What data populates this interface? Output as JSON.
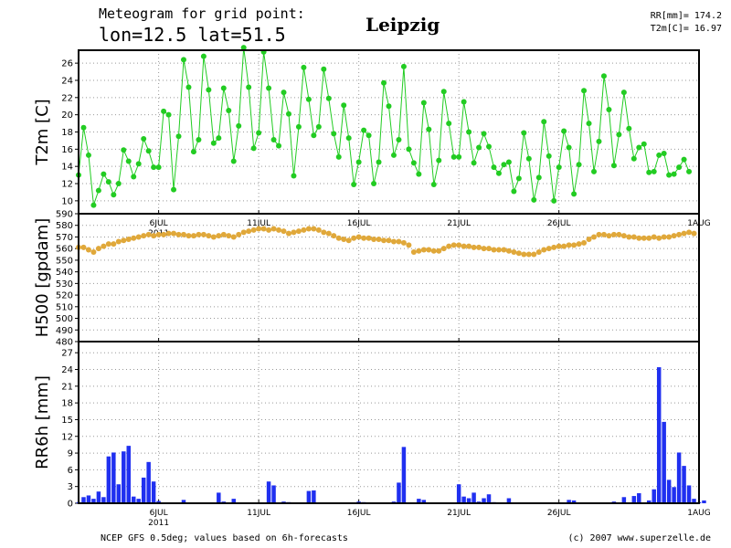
{
  "header": {
    "title_line1": "Meteogram for grid point:",
    "title_line2": "lon=12.5 lat=51.5",
    "location": "Leipzig",
    "rr_total": "RR[mm]= 174.2",
    "t2m_mean": "T2m[C]= 16.97"
  },
  "footer": {
    "source": "NCEP GFS 0.5deg; values based on 6h-forecasts",
    "credit": "(c) 2007 www.superzelle.de"
  },
  "colors": {
    "t2m": "#22cc22",
    "h500": "#e0a83a",
    "rr6h": "#2030f0",
    "grid": "#999999"
  },
  "chart_data": [
    {
      "type": "line",
      "ylabel": "T2m [C]",
      "ylim": [
        8.5,
        27.5
      ],
      "yticks": [
        10,
        12,
        14,
        16,
        18,
        20,
        22,
        24,
        26
      ],
      "xlim": [
        0,
        124
      ],
      "xticks": [
        {
          "label": "6JUL",
          "x": 16
        },
        {
          "label": "11JUL",
          "x": 36
        },
        {
          "label": "16JUL",
          "x": 56
        },
        {
          "label": "21JUL",
          "x": 76
        },
        {
          "label": "26JUL",
          "x": 96
        },
        {
          "label": "1AUG",
          "x": 124
        }
      ],
      "year_label": "2011",
      "x_unit": "6-hour steps from 2 JUL 2011",
      "values": [
        13,
        18.5,
        15.3,
        9.5,
        11.2,
        13.1,
        12.2,
        10.7,
        12,
        15.9,
        14.6,
        12.8,
        14.3,
        17.2,
        15.8,
        13.9,
        13.9,
        20.4,
        20,
        11.3,
        17.5,
        26.4,
        23.2,
        15.7,
        17.1,
        26.8,
        22.9,
        16.7,
        17.3,
        23.1,
        20.5,
        14.6,
        18.7,
        27.8,
        23.2,
        16.1,
        17.9,
        27.3,
        23.1,
        17.1,
        16.4,
        22.6,
        20.1,
        12.9,
        18.6,
        25.5,
        21.8,
        17.6,
        18.6,
        25.3,
        21.9,
        17.8,
        15.1,
        21.1,
        17.3,
        11.9,
        14.5,
        18.2,
        17.6,
        12,
        14.5,
        23.7,
        21,
        15.3,
        17.1,
        25.6,
        16,
        14.4,
        13.1,
        21.4,
        18.3,
        11.9,
        14.7,
        22.7,
        19,
        15.1,
        15.1,
        21.5,
        18,
        14.4,
        16.2,
        17.8,
        16.3,
        13.9,
        13.2,
        14.2,
        14.5,
        11.1,
        12.6,
        17.9,
        14.9,
        10.1,
        12.7,
        19.2,
        15.2,
        10,
        13.9,
        18.1,
        16.2,
        10.8,
        14.2,
        22.8,
        19,
        13.4,
        16.9,
        24.5,
        20.6,
        14.1,
        17.7,
        22.6,
        18.4,
        14.9,
        16.2,
        16.6,
        13.3,
        13.4,
        15.3,
        15.5,
        13,
        13.1,
        13.9,
        14.8,
        13.4
      ]
    },
    {
      "type": "line",
      "ylabel": "H500 [gpdam]",
      "ylim": [
        480,
        590
      ],
      "yticks": [
        480,
        490,
        500,
        510,
        520,
        530,
        540,
        550,
        560,
        570,
        580,
        590
      ],
      "xlim": [
        0,
        124
      ],
      "values": [
        561,
        561,
        559,
        557,
        560,
        562,
        564,
        564,
        566,
        567,
        568,
        569,
        570,
        571,
        572,
        571,
        572,
        572,
        573,
        573,
        572,
        572,
        571,
        571,
        572,
        572,
        571,
        570,
        571,
        572,
        571,
        570,
        572,
        574,
        575,
        576,
        577,
        577,
        576,
        577,
        576,
        575,
        573,
        574,
        575,
        576,
        577,
        577,
        576,
        574,
        573,
        571,
        569,
        568,
        567,
        569,
        570,
        569,
        569,
        568,
        568,
        567,
        567,
        566,
        566,
        565,
        563,
        557,
        558,
        559,
        559,
        558,
        558,
        560,
        562,
        563,
        563,
        562,
        562,
        561,
        561,
        560,
        560,
        559,
        559,
        559,
        558,
        557,
        556,
        555,
        555,
        555,
        557,
        559,
        560,
        561,
        562,
        562,
        563,
        563,
        564,
        565,
        568,
        570,
        572,
        572,
        571,
        572,
        572,
        571,
        570,
        570,
        569,
        569,
        569,
        570,
        569,
        570,
        570,
        571,
        572,
        573,
        574,
        573
      ]
    },
    {
      "type": "bar",
      "ylabel": "RR6h [mm]",
      "ylim": [
        0,
        29
      ],
      "yticks": [
        0,
        3,
        6,
        9,
        12,
        15,
        18,
        21,
        24,
        27
      ],
      "xlim": [
        0,
        124
      ],
      "xticks": [
        {
          "label": "6JUL",
          "x": 16
        },
        {
          "label": "11JUL",
          "x": 36
        },
        {
          "label": "16JUL",
          "x": 56
        },
        {
          "label": "21JUL",
          "x": 76
        },
        {
          "label": "26JUL",
          "x": 96
        },
        {
          "label": "1AUG",
          "x": 124
        }
      ],
      "year_label": "2011",
      "values": [
        0.2,
        1.1,
        1.4,
        0.8,
        2.1,
        1.1,
        8.4,
        9.1,
        3.4,
        9.3,
        10.3,
        1.2,
        0.8,
        4.6,
        7.4,
        3.9,
        0.4,
        0,
        0,
        0,
        0,
        0.6,
        0,
        0,
        0,
        0,
        0,
        0,
        1.9,
        0.3,
        0,
        0.8,
        0,
        0,
        0,
        0,
        0,
        0,
        3.9,
        3.2,
        0,
        0.3,
        0.2,
        0,
        0,
        0,
        2.2,
        2.3,
        0,
        0,
        0,
        0,
        0,
        0,
        0,
        0,
        0.3,
        0.2,
        0,
        0,
        0,
        0,
        0,
        0.3,
        3.7,
        10.1,
        0,
        0,
        0.8,
        0.6,
        0,
        0,
        0,
        0,
        0,
        0,
        3.4,
        1.2,
        0.9,
        1.9,
        0.3,
        0.9,
        1.6,
        0.2,
        0,
        0,
        0.9,
        0.1,
        0,
        0,
        0,
        0,
        0,
        0,
        0,
        0,
        0,
        0,
        0.6,
        0.5,
        0,
        0,
        0,
        0,
        0,
        0,
        0,
        0.3,
        0,
        1.1,
        0,
        1.3,
        1.8,
        0,
        0.5,
        2.5,
        24.4,
        14.6,
        4.2,
        2.9,
        9.1,
        6.7,
        3.2,
        0.8,
        0.2,
        0.5
      ]
    }
  ]
}
